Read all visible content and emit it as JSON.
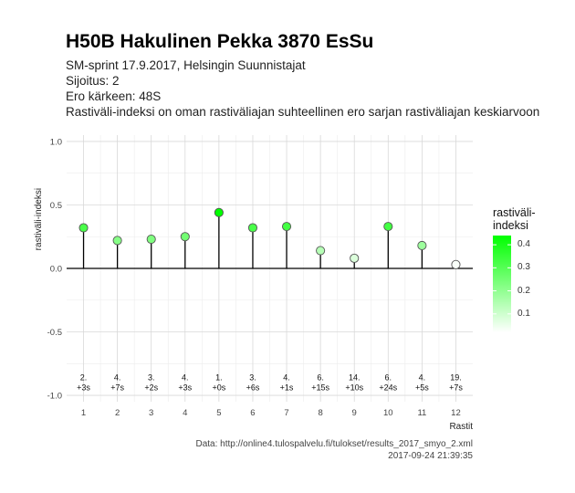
{
  "title": "H50B Hakulinen Pekka 3870 EsSu",
  "subtitle_lines": [
    "SM-sprint 17.9.2017, Helsingin Suunnistajat",
    "Sijoitus: 2",
    "Ero kärkeen: 48S",
    "Rastiväli-indeksi on oman rastiväliajan suhteellinen ero sarjan rastiväliajan keskiarvoon"
  ],
  "caption_lines": [
    "Data: http://online4.tulospalvelu.fi/tulokset/results_2017_smyo_2.xml",
    "2017-09-24 21:39:35"
  ],
  "legend": {
    "title_lines": [
      "rastiväli-",
      "indeksi"
    ],
    "labels": [
      "0.4",
      "0.3",
      "0.2",
      "0.1"
    ],
    "label_values": [
      0.4,
      0.3,
      0.2,
      0.1
    ],
    "range": [
      0.02,
      0.44
    ],
    "color_low": "#ffffff",
    "color_high": "#00ff00"
  },
  "chart_data": {
    "type": "lollipop",
    "xlabel": "Rastit",
    "ylabel": "rastiväli-indeksi",
    "ylim": [
      -1.05,
      1.05
    ],
    "yticks": [
      -1.0,
      -0.5,
      0.0,
      0.5,
      1.0
    ],
    "ytick_labels": [
      "-1.0",
      "-0.5",
      "0.0",
      "0.5",
      "1.0"
    ],
    "x": [
      1,
      2,
      3,
      4,
      5,
      6,
      7,
      8,
      9,
      10,
      11,
      12
    ],
    "xtick_labels": [
      "1",
      "2",
      "3",
      "4",
      "5",
      "6",
      "7",
      "8",
      "9",
      "10",
      "11",
      "12"
    ],
    "values": [
      0.32,
      0.22,
      0.23,
      0.25,
      0.44,
      0.32,
      0.33,
      0.14,
      0.08,
      0.33,
      0.18,
      0.03
    ],
    "rank_labels": [
      "2.",
      "4.",
      "3.",
      "4.",
      "1.",
      "3.",
      "4.",
      "6.",
      "14.",
      "6.",
      "4.",
      "19."
    ],
    "diff_labels": [
      "+3s",
      "+7s",
      "+2s",
      "+3s",
      "+0s",
      "+6s",
      "+1s",
      "+15s",
      "+10s",
      "+24s",
      "+5s",
      "+7s"
    ],
    "grid": true
  }
}
